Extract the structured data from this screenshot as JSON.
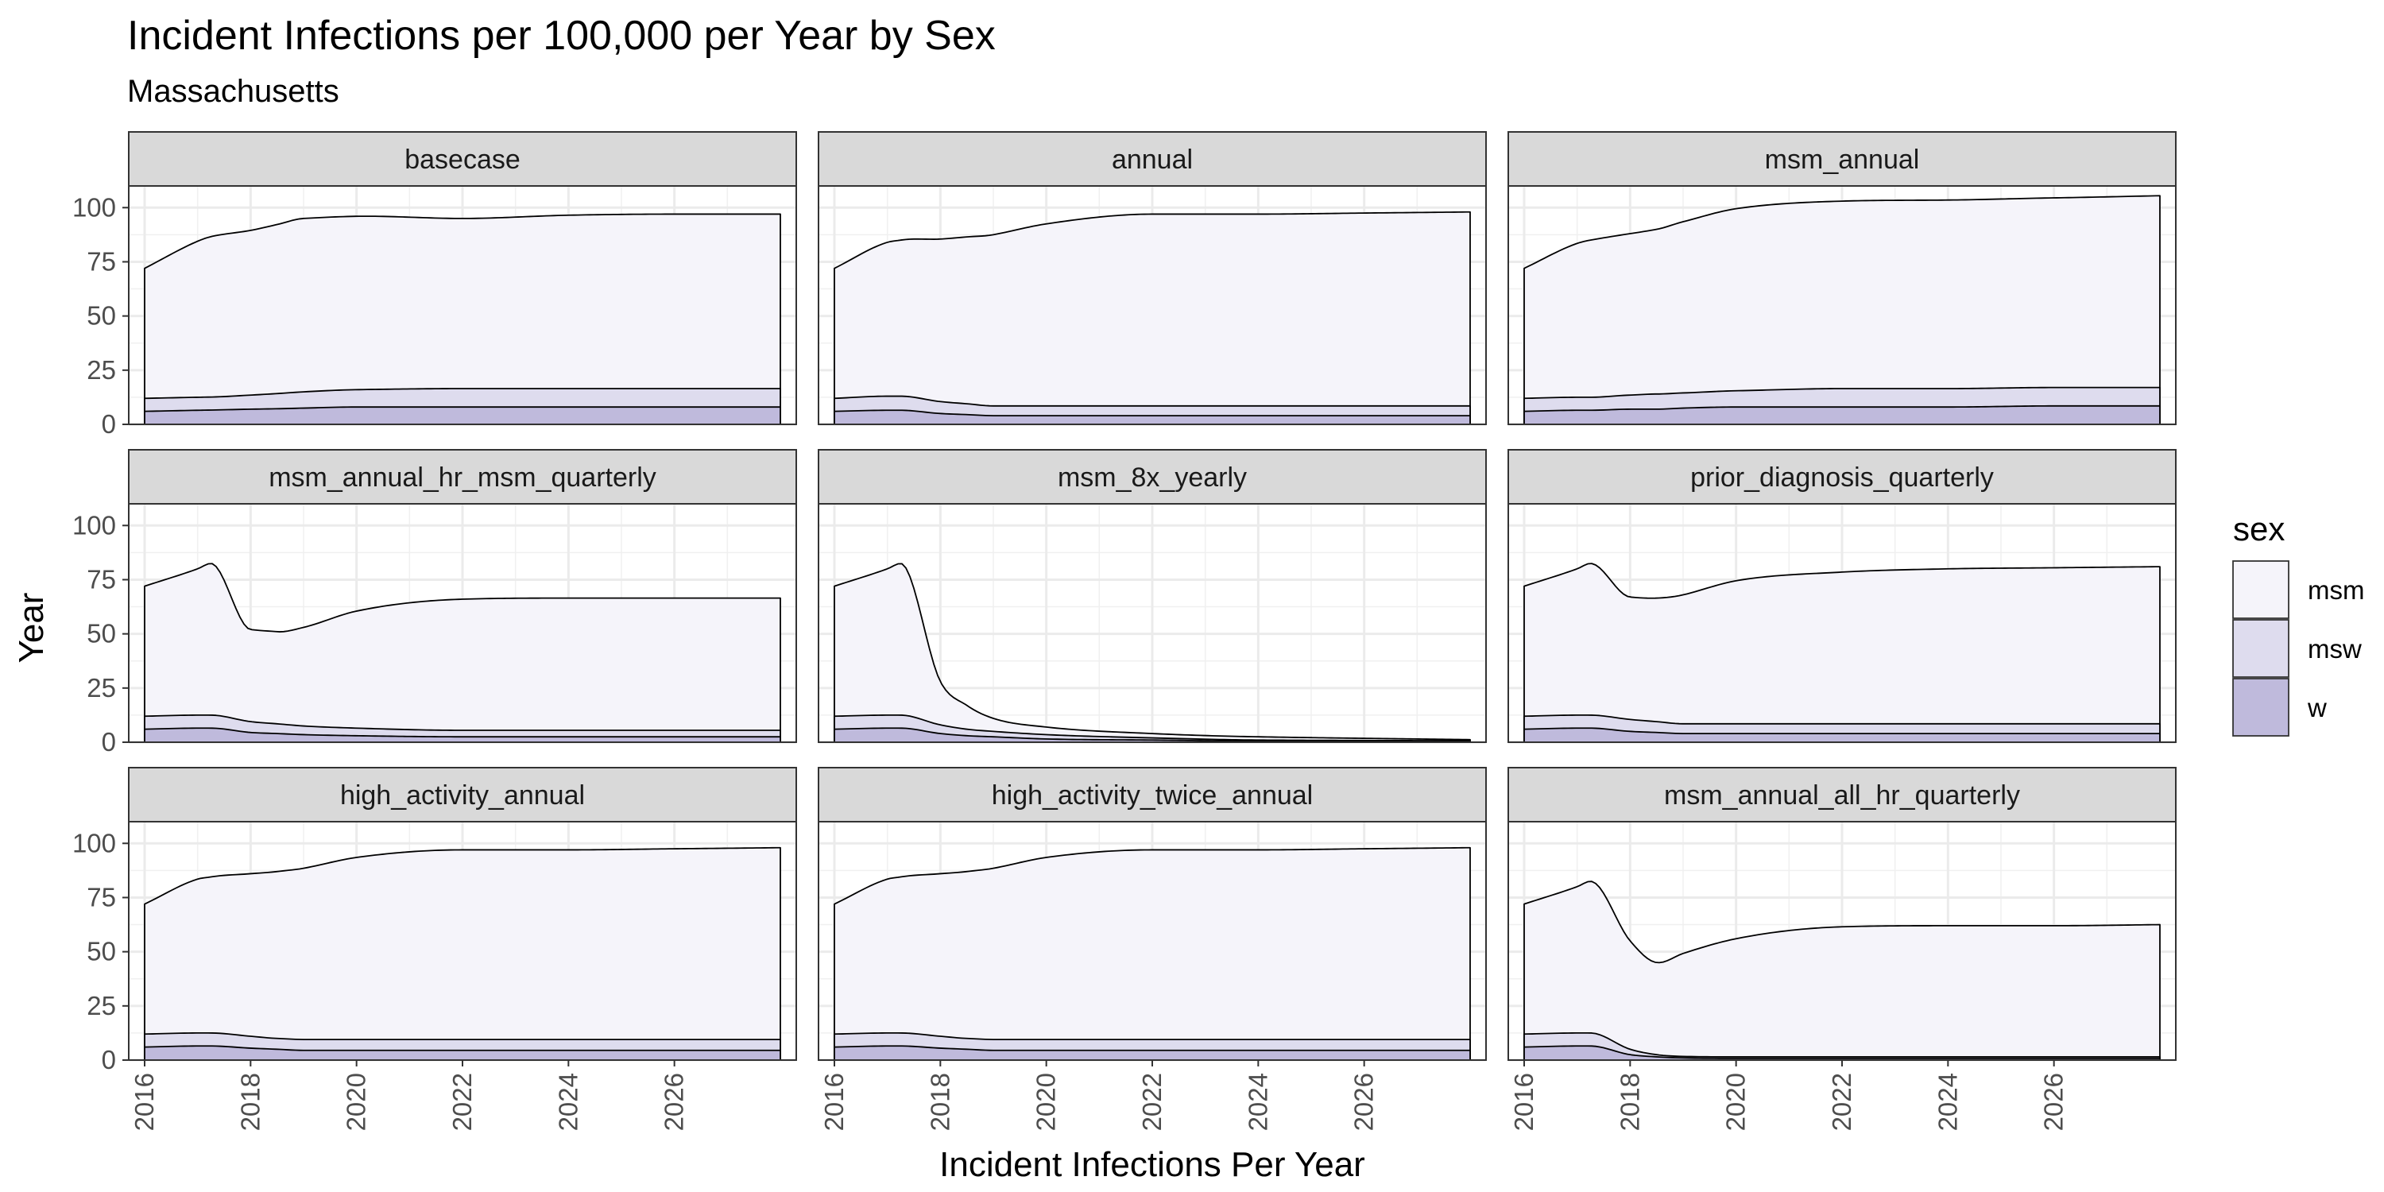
{
  "chart_data": {
    "type": "area",
    "stacked": true,
    "title": "Incident Infections per 100,000 per Year by Sex",
    "subtitle": "Massachusetts",
    "xlabel": "Incident Infections Per Year",
    "ylabel": "Year",
    "xlim": [
      2015.7,
      2028.3
    ],
    "ylim": [
      0,
      110
    ],
    "x_ticks": [
      "2016",
      "2018",
      "2020",
      "2022",
      "2024",
      "2026"
    ],
    "y_ticks": [
      "0",
      "25",
      "50",
      "75",
      "100"
    ],
    "grid": true,
    "legend": {
      "title": "sex",
      "placement": "right",
      "entries": [
        {
          "name": "msm",
          "color": "#f5f4fa"
        },
        {
          "name": "msw",
          "color": "#dedcee"
        },
        {
          "name": "w",
          "color": "#bfbadc"
        }
      ]
    },
    "x": [
      2016,
      2017,
      2017.25,
      2018,
      2018.5,
      2019,
      2020,
      2022,
      2024,
      2026,
      2028
    ],
    "panels": [
      {
        "name": "basecase",
        "series": [
          {
            "name": "w",
            "values": [
              6,
              6.5,
              6.6,
              7,
              7.2,
              7.5,
              8,
              8,
              8,
              8,
              8
            ]
          },
          {
            "name": "msw",
            "values": [
              6,
              6,
              6,
              6.5,
              7,
              7.5,
              8,
              8.5,
              8.5,
              8.5,
              8.5
            ]
          },
          {
            "name": "msm",
            "values": [
              60,
              72,
              74,
              76,
              78,
              80,
              80,
              78.5,
              80,
              80.5,
              80.5
            ]
          }
        ]
      },
      {
        "name": "annual",
        "series": [
          {
            "name": "w",
            "values": [
              6,
              6.5,
              6.5,
              5,
              4.5,
              4,
              4,
              4,
              4,
              4,
              4
            ]
          },
          {
            "name": "msw",
            "values": [
              6,
              6.5,
              6.5,
              5.5,
              5,
              4.5,
              4.5,
              4.5,
              4.5,
              4.5,
              4.5
            ]
          },
          {
            "name": "msm",
            "values": [
              60,
              71,
              72,
              75,
              77,
              79,
              84,
              88.5,
              88.5,
              89,
              89.5
            ]
          }
        ]
      },
      {
        "name": "msm_annual",
        "series": [
          {
            "name": "w",
            "values": [
              6,
              6.5,
              6.5,
              7,
              7,
              7.5,
              8,
              8,
              8,
              8.5,
              8.5
            ]
          },
          {
            "name": "msw",
            "values": [
              6,
              6,
              6,
              6.5,
              7,
              7,
              7.5,
              8.5,
              8.5,
              8.5,
              8.5
            ]
          },
          {
            "name": "msm",
            "values": [
              60,
              71,
              72.5,
              74.5,
              76,
              79,
              84,
              86.5,
              87,
              87.5,
              88.5
            ]
          }
        ]
      },
      {
        "name": "msm_annual_hr_msm_quarterly",
        "series": [
          {
            "name": "w",
            "values": [
              6,
              6.5,
              6.5,
              4.5,
              4,
              3.5,
              3,
              2.5,
              2.5,
              2.5,
              2.5
            ]
          },
          {
            "name": "msw",
            "values": [
              6,
              6,
              6,
              5,
              4.5,
              4,
              3.5,
              3,
              3,
              3,
              3
            ]
          },
          {
            "name": "msm",
            "values": [
              60,
              67.5,
              70,
              42.5,
              42.5,
              45.5,
              54,
              60.5,
              61,
              61,
              61
            ]
          }
        ]
      },
      {
        "name": "msm_8x_yearly",
        "series": [
          {
            "name": "w",
            "values": [
              6,
              6.5,
              6.5,
              4,
              3,
              2.5,
              1.5,
              1,
              0.5,
              0.5,
              0.5
            ]
          },
          {
            "name": "msw",
            "values": [
              6,
              6,
              6,
              4,
              3,
              2.5,
              2,
              1,
              0.5,
              0.3,
              0.2
            ]
          },
          {
            "name": "msm",
            "values": [
              60,
              67.5,
              70,
              20,
              11,
              6,
              3.5,
              2,
              1.5,
              1,
              0.5
            ]
          }
        ]
      },
      {
        "name": "prior_diagnosis_quarterly",
        "series": [
          {
            "name": "w",
            "values": [
              6,
              6.5,
              6.5,
              5,
              4.5,
              4,
              4,
              4,
              4,
              4,
              4
            ]
          },
          {
            "name": "msw",
            "values": [
              6,
              6,
              6,
              5.5,
              5,
              4.5,
              4.5,
              4.5,
              4.5,
              4.5,
              4.5
            ]
          },
          {
            "name": "msm",
            "values": [
              60,
              67.5,
              70,
              56.5,
              57,
              59.5,
              66,
              70,
              71.5,
              72,
              72.5
            ]
          }
        ]
      },
      {
        "name": "high_activity_annual",
        "series": [
          {
            "name": "w",
            "values": [
              6,
              6.5,
              6.5,
              5.5,
              5,
              4.5,
              4.5,
              4.5,
              4.5,
              4.5,
              4.5
            ]
          },
          {
            "name": "msw",
            "values": [
              6,
              6,
              6,
              5.5,
              5,
              5,
              5,
              5,
              5,
              5,
              5
            ]
          },
          {
            "name": "msm",
            "values": [
              60,
              71,
              72,
              75,
              77,
              79,
              84,
              87.5,
              87.5,
              88,
              88.5
            ]
          }
        ]
      },
      {
        "name": "high_activity_twice_annual",
        "series": [
          {
            "name": "w",
            "values": [
              6,
              6.5,
              6.5,
              5.5,
              5,
              4.5,
              4.5,
              4.5,
              4.5,
              4.5,
              4.5
            ]
          },
          {
            "name": "msw",
            "values": [
              6,
              6,
              6,
              5.5,
              5,
              5,
              5,
              5,
              5,
              5,
              5
            ]
          },
          {
            "name": "msm",
            "values": [
              60,
              71,
              72,
              75,
              77,
              79,
              84,
              87.5,
              87.5,
              88,
              88.5
            ]
          }
        ]
      },
      {
        "name": "msm_annual_all_hr_quarterly",
        "series": [
          {
            "name": "w",
            "values": [
              6,
              6.5,
              6.5,
              2.5,
              1.5,
              1,
              0.8,
              0.8,
              0.8,
              0.8,
              0.8
            ]
          },
          {
            "name": "msw",
            "values": [
              6,
              6,
              6,
              2.5,
              1,
              0.7,
              0.7,
              0.7,
              0.7,
              0.7,
              0.7
            ]
          },
          {
            "name": "msm",
            "values": [
              60,
              67.5,
              70,
              50,
              42.5,
              47.5,
              54.5,
              60,
              60.5,
              60.5,
              61
            ]
          }
        ]
      }
    ]
  }
}
